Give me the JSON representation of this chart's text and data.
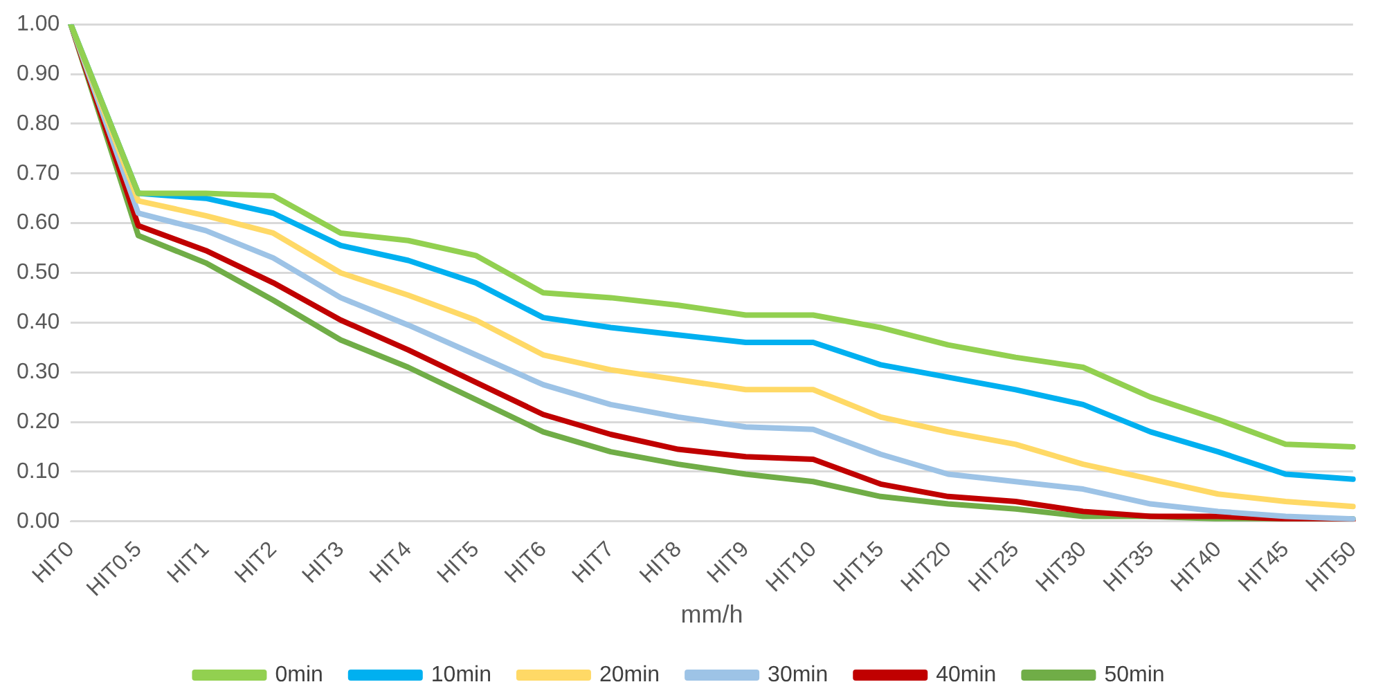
{
  "chart_data": {
    "type": "line",
    "xlabel": "mm/h",
    "categories": [
      "HIT0",
      "HIT0.5",
      "HIT1",
      "HIT2",
      "HIT3",
      "HIT4",
      "HIT5",
      "HIT6",
      "HIT7",
      "HIT8",
      "HIT9",
      "HIT10",
      "HIT15",
      "HIT20",
      "HIT25",
      "HIT30",
      "HIT35",
      "HIT40",
      "HIT45",
      "HIT50"
    ],
    "series": [
      {
        "name": "0min",
        "color": "#92d050",
        "values": [
          1.0,
          0.66,
          0.66,
          0.655,
          0.58,
          0.565,
          0.535,
          0.46,
          0.45,
          0.435,
          0.415,
          0.415,
          0.39,
          0.355,
          0.33,
          0.31,
          0.25,
          0.205,
          0.155,
          0.15
        ]
      },
      {
        "name": "10min",
        "color": "#00b0f0",
        "values": [
          1.0,
          0.66,
          0.65,
          0.62,
          0.555,
          0.525,
          0.48,
          0.41,
          0.39,
          0.375,
          0.36,
          0.36,
          0.315,
          0.29,
          0.265,
          0.235,
          0.18,
          0.14,
          0.095,
          0.085
        ]
      },
      {
        "name": "20min",
        "color": "#ffd966",
        "values": [
          1.0,
          0.645,
          0.615,
          0.58,
          0.5,
          0.455,
          0.405,
          0.335,
          0.305,
          0.285,
          0.265,
          0.265,
          0.21,
          0.18,
          0.155,
          0.115,
          0.085,
          0.055,
          0.04,
          0.03
        ]
      },
      {
        "name": "30min",
        "color": "#9dc3e6",
        "values": [
          1.0,
          0.62,
          0.585,
          0.53,
          0.45,
          0.395,
          0.335,
          0.275,
          0.235,
          0.21,
          0.19,
          0.185,
          0.135,
          0.095,
          0.08,
          0.065,
          0.035,
          0.02,
          0.01,
          0.005
        ]
      },
      {
        "name": "40min",
        "color": "#c00000",
        "values": [
          1.0,
          0.595,
          0.545,
          0.48,
          0.405,
          0.345,
          0.28,
          0.215,
          0.175,
          0.145,
          0.13,
          0.125,
          0.075,
          0.05,
          0.04,
          0.02,
          0.01,
          0.01,
          0.005,
          0.0
        ]
      },
      {
        "name": "50min",
        "color": "#70ad47",
        "values": [
          1.0,
          0.575,
          0.52,
          0.445,
          0.365,
          0.31,
          0.245,
          0.18,
          0.14,
          0.115,
          0.095,
          0.08,
          0.05,
          0.035,
          0.025,
          0.01,
          0.01,
          0.005,
          0.005,
          0.005
        ]
      }
    ],
    "ylim": [
      0,
      1
    ],
    "yticks": [
      {
        "value": 0,
        "label": "0.00"
      },
      {
        "value": 0.1,
        "label": "0.10"
      },
      {
        "value": 0.2,
        "label": "0.20"
      },
      {
        "value": 0.3,
        "label": "0.30"
      },
      {
        "value": 0.4,
        "label": "0.40"
      },
      {
        "value": 0.5,
        "label": "0.50"
      },
      {
        "value": 0.6,
        "label": "0.60"
      },
      {
        "value": 0.7,
        "label": "0.70"
      },
      {
        "value": 0.8,
        "label": "0.80"
      },
      {
        "value": 0.9,
        "label": "0.90"
      },
      {
        "value": 1,
        "label": "1.00"
      }
    ],
    "grid": "y",
    "legend": "bottom",
    "marker": "none",
    "line_style": "solid"
  }
}
